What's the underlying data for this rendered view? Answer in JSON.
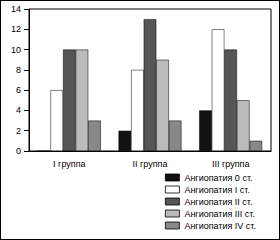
{
  "chart_data": {
    "type": "bar",
    "categories": [
      "I группа",
      "II группа",
      "III группа"
    ],
    "series": [
      {
        "name": "Ангиопатия 0 ст.",
        "color": "#111111",
        "values": [
          0,
          2,
          4
        ]
      },
      {
        "name": "Ангиопатия I ст.",
        "color": "#ffffff",
        "values": [
          6,
          8,
          12
        ]
      },
      {
        "name": "Ангиопатия II ст.",
        "color": "#555555",
        "values": [
          10,
          13,
          10
        ]
      },
      {
        "name": "Ангиопатия III ст.",
        "color": "#bbbbbb",
        "values": [
          10,
          9,
          5
        ]
      },
      {
        "name": "Ангиопатия IV ст.",
        "color": "#888888",
        "values": [
          3,
          3,
          1
        ]
      }
    ],
    "ylim": [
      0,
      14
    ],
    "yticks": [
      0,
      2,
      4,
      6,
      8,
      10,
      12,
      14
    ],
    "grid": false,
    "legend": "bottom-right"
  }
}
